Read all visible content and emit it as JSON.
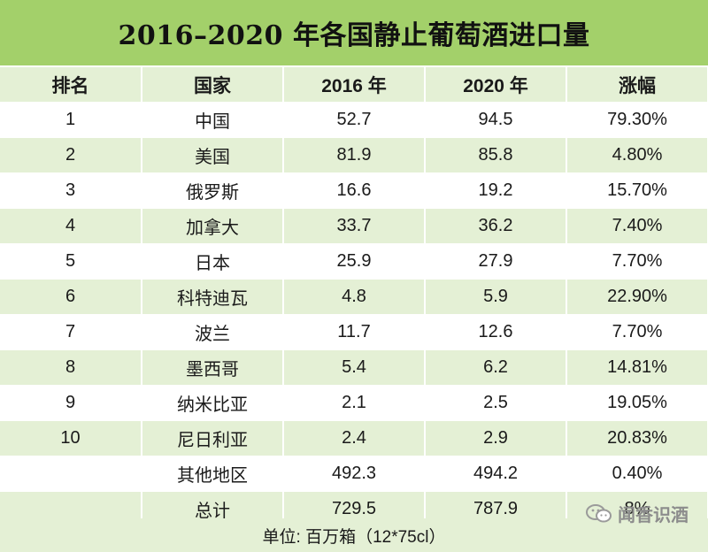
{
  "title": "2016–2020 年各国静止葡萄酒进口量",
  "headers": [
    "排名",
    "国家",
    "2016 年",
    "2020 年",
    "涨幅"
  ],
  "rows": [
    {
      "rank": "1",
      "country": "中国",
      "y2016": "52.7",
      "y2020": "94.5",
      "growth": "79.30%"
    },
    {
      "rank": "2",
      "country": "美国",
      "y2016": "81.9",
      "y2020": "85.8",
      "growth": "4.80%"
    },
    {
      "rank": "3",
      "country": "俄罗斯",
      "y2016": "16.6",
      "y2020": "19.2",
      "growth": "15.70%"
    },
    {
      "rank": "4",
      "country": "加拿大",
      "y2016": "33.7",
      "y2020": "36.2",
      "growth": "7.40%"
    },
    {
      "rank": "5",
      "country": "日本",
      "y2016": "25.9",
      "y2020": "27.9",
      "growth": "7.70%"
    },
    {
      "rank": "6",
      "country": "科特迪瓦",
      "y2016": "4.8",
      "y2020": "5.9",
      "growth": "22.90%"
    },
    {
      "rank": "7",
      "country": "波兰",
      "y2016": "11.7",
      "y2020": "12.6",
      "growth": "7.70%"
    },
    {
      "rank": "8",
      "country": "墨西哥",
      "y2016": "5.4",
      "y2020": "6.2",
      "growth": "14.81%"
    },
    {
      "rank": "9",
      "country": "纳米比亚",
      "y2016": "2.1",
      "y2020": "2.5",
      "growth": "19.05%"
    },
    {
      "rank": "10",
      "country": "尼日利亚",
      "y2016": "2.4",
      "y2020": "2.9",
      "growth": "20.83%"
    },
    {
      "rank": "",
      "country": "其他地区",
      "y2016": "492.3",
      "y2020": "494.2",
      "growth": "0.40%"
    },
    {
      "rank": "",
      "country": "总计",
      "y2016": "729.5",
      "y2020": "787.9",
      "growth": "8%"
    }
  ],
  "footer": "单位: 百万箱（12*75cl）",
  "watermark": {
    "text": "闻香识酒",
    "icon": "wechat-icon"
  },
  "colors": {
    "title_bg": "#a3d06a",
    "stripe": "#e4f0d5",
    "white": "#ffffff"
  }
}
